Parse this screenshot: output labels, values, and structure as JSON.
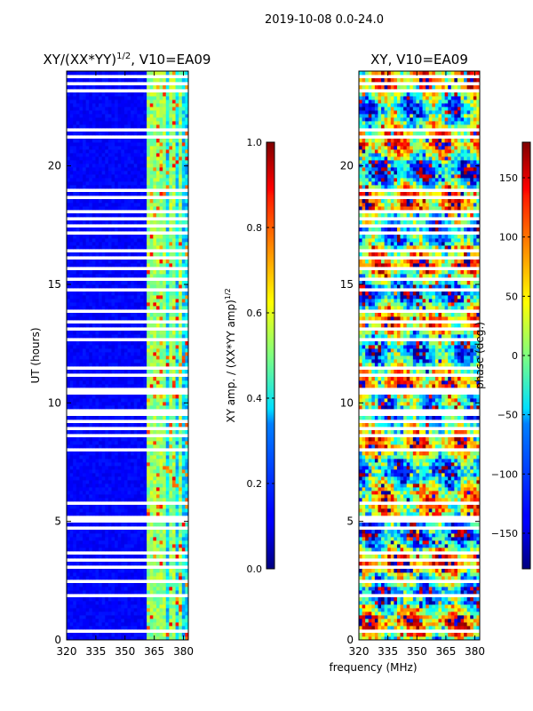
{
  "figure": {
    "suptitle": "2019-10-08 0.0-24.0",
    "xlabel_shared": "frequency (MHz)"
  },
  "chart_data": [
    {
      "type": "heatmap",
      "title": "XY/(XX*YY)",
      "title_sup": "1/2",
      "title_tail": ", V10=EA09",
      "xlabel": "",
      "ylabel": "UT (hours)",
      "xlim": [
        320,
        382.5
      ],
      "ylim": [
        0,
        24
      ],
      "xticks": [
        320,
        335,
        350,
        365,
        380
      ],
      "yticks": [
        0,
        5,
        10,
        15,
        20
      ],
      "colorbar": {
        "label": "XY amp. / (XX*YY amp)",
        "label_sup": "1/2",
        "range": [
          0.0,
          1.0
        ],
        "ticks": [
          "0.0",
          "0.2",
          "0.4",
          "0.6",
          "0.8",
          "1.0"
        ],
        "tick_values": [
          0.0,
          0.2,
          0.4,
          0.6,
          0.8,
          1.0
        ]
      },
      "description_values": {
        "background_level": 0.1,
        "channel_band_MHz": [
          361,
          382
        ],
        "channel_band_level": 0.5
      }
    },
    {
      "type": "heatmap",
      "title": "XY, V10=EA09",
      "xlabel": "frequency (MHz)",
      "ylabel": "",
      "xlim": [
        320,
        382.5
      ],
      "ylim": [
        0,
        24
      ],
      "xticks": [
        320,
        335,
        350,
        365,
        380
      ],
      "yticks": [
        0,
        5,
        10,
        15,
        20
      ],
      "colorbar": {
        "label": "phase (deg.)",
        "range": [
          -180,
          180
        ],
        "ticks": [
          "−150",
          "−100",
          "−50",
          "0",
          "50",
          "100",
          "150"
        ],
        "tick_values": [
          -150,
          -100,
          -50,
          0,
          50,
          100,
          150
        ]
      }
    }
  ],
  "colors": {
    "jet_low": "#00007f",
    "jet_mid": "#7fff7f",
    "jet_high": "#7f0000"
  }
}
